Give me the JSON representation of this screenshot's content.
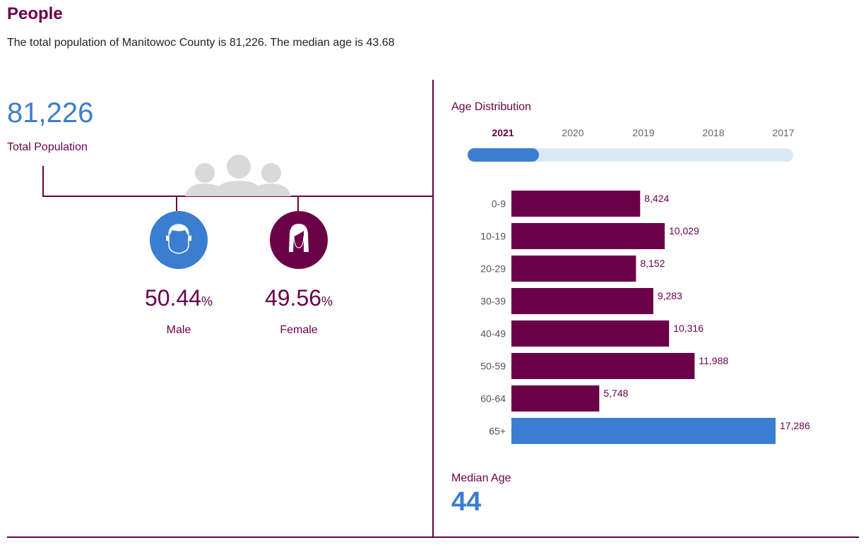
{
  "header": {
    "title": "People",
    "summary": "The total population of Manitowoc County is 81,226. The median age is 43.68"
  },
  "total": {
    "value": "81,226",
    "label": "Total Population"
  },
  "gender": {
    "male": {
      "value": "50.44",
      "unit": "%",
      "label": "Male"
    },
    "female": {
      "value": "49.56",
      "unit": "%",
      "label": "Female"
    }
  },
  "age_distribution": {
    "title": "Age Distribution",
    "years": [
      "2021",
      "2020",
      "2019",
      "2018",
      "2017"
    ],
    "selected_year": "2021"
  },
  "median": {
    "label": "Median Age",
    "value": "44"
  },
  "colors": {
    "primary": "#6b0049",
    "accent": "#3b7dd0",
    "track": "#dbe9f6",
    "icon_gray": "#d9d9d9"
  },
  "icons": [
    "people-group-icon",
    "male-face-icon",
    "female-face-icon"
  ],
  "chart_data": {
    "type": "bar",
    "orientation": "horizontal",
    "categories": [
      "0-9",
      "10-19",
      "20-29",
      "30-39",
      "40-49",
      "50-59",
      "60-64",
      "65+"
    ],
    "values": [
      8424,
      10029,
      8152,
      9283,
      10316,
      11988,
      5748,
      17286
    ],
    "value_labels": [
      "8,424",
      "10,029",
      "8,152",
      "9,283",
      "10,316",
      "11,988",
      "5,748",
      "17,286"
    ],
    "highlight_category": "65+",
    "xlim": [
      0,
      20000
    ],
    "grid": false
  }
}
